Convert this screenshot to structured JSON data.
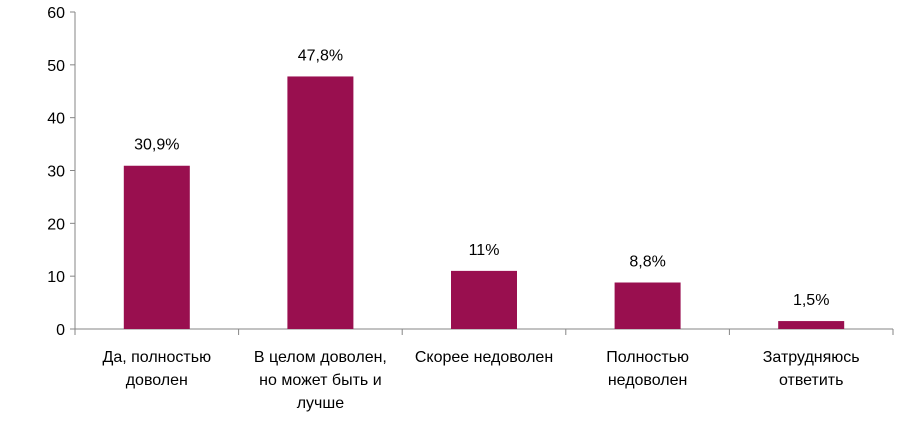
{
  "chart_data": {
    "type": "bar",
    "categories": [
      [
        "Да, полностью",
        "доволен"
      ],
      [
        "В целом доволен,",
        "но может быть и",
        "лучше"
      ],
      [
        "Скорее недоволен"
      ],
      [
        "Полностью",
        "недоволен"
      ],
      [
        "Затрудняюсь",
        "ответить"
      ]
    ],
    "values": [
      30.9,
      47.8,
      11,
      8.8,
      1.5
    ],
    "data_labels": [
      "30,9%",
      "47,8%",
      "11%",
      "8,8%",
      "1,5%"
    ],
    "yticks": [
      0,
      10,
      20,
      30,
      40,
      50,
      60
    ],
    "ylim": [
      0,
      60
    ],
    "title": "",
    "xlabel": "",
    "ylabel": "",
    "grid": false,
    "legend": "none",
    "bar_color": "#990f4f"
  }
}
